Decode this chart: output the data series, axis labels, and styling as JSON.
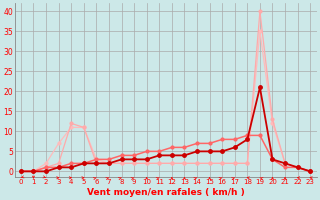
{
  "xlabel": "Vent moyen/en rafales ( km/h )",
  "x_ticks": [
    0,
    1,
    2,
    3,
    4,
    5,
    6,
    7,
    8,
    9,
    10,
    11,
    12,
    13,
    14,
    15,
    16,
    17,
    18,
    19,
    20,
    21,
    22,
    23
  ],
  "ylim": [
    -1.5,
    42
  ],
  "xlim": [
    -0.5,
    23.5
  ],
  "y_ticks": [
    0,
    5,
    10,
    15,
    20,
    25,
    30,
    35,
    40
  ],
  "bg_color": "#cce8e8",
  "grid_color": "#aaaaaa",
  "series": [
    {
      "x": [
        0,
        1,
        2,
        3,
        4,
        5,
        6,
        7,
        8,
        9,
        10,
        11,
        12,
        13,
        14,
        15,
        16,
        17,
        18,
        19,
        20,
        21,
        22,
        23
      ],
      "y": [
        0,
        0,
        2,
        7,
        11,
        11,
        3,
        2,
        2,
        2,
        2,
        2,
        2,
        2,
        2,
        2,
        2,
        2,
        2,
        35,
        12,
        2,
        1,
        0
      ],
      "color": "#ffbbbb",
      "lw": 0.9,
      "marker": "o",
      "ms": 2.0
    },
    {
      "x": [
        0,
        1,
        2,
        3,
        4,
        5,
        6,
        7,
        8,
        9,
        10,
        11,
        12,
        13,
        14,
        15,
        16,
        17,
        18,
        19,
        20,
        21,
        22,
        23
      ],
      "y": [
        0,
        0,
        1,
        2,
        12,
        11,
        2,
        2,
        2,
        2,
        2,
        2,
        2,
        2,
        2,
        2,
        2,
        2,
        2,
        40,
        13,
        2,
        1,
        0
      ],
      "color": "#ffaaaa",
      "lw": 0.9,
      "marker": "o",
      "ms": 2.0
    },
    {
      "x": [
        0,
        1,
        2,
        3,
        4,
        5,
        6,
        7,
        8,
        9,
        10,
        11,
        12,
        13,
        14,
        15,
        16,
        17,
        18,
        19,
        20,
        21,
        22,
        23
      ],
      "y": [
        0,
        0,
        1,
        1,
        2,
        2,
        3,
        3,
        4,
        4,
        5,
        5,
        6,
        6,
        7,
        7,
        8,
        8,
        9,
        9,
        3,
        1,
        1,
        0
      ],
      "color": "#ff6666",
      "lw": 1.1,
      "marker": "o",
      "ms": 2.0
    },
    {
      "x": [
        0,
        1,
        2,
        3,
        4,
        5,
        6,
        7,
        8,
        9,
        10,
        11,
        12,
        13,
        14,
        15,
        16,
        17,
        18,
        19,
        20,
        21,
        22,
        23
      ],
      "y": [
        0,
        0,
        0,
        1,
        1,
        2,
        2,
        2,
        3,
        3,
        3,
        4,
        4,
        4,
        5,
        5,
        5,
        6,
        8,
        21,
        3,
        2,
        1,
        0
      ],
      "color": "#cc0000",
      "lw": 1.3,
      "marker": "o",
      "ms": 2.5
    }
  ],
  "wind_arrows": {
    "x": [
      0,
      1,
      2,
      3,
      4,
      5,
      6,
      7,
      8,
      9,
      10,
      11,
      12,
      13,
      14,
      15,
      16,
      17,
      18,
      19,
      20,
      21,
      22,
      23
    ],
    "angles_deg": [
      315,
      0,
      45,
      90,
      90,
      90,
      135,
      135,
      135,
      135,
      180,
      135,
      180,
      180,
      135,
      180,
      135,
      135,
      270,
      225,
      180,
      180,
      270,
      270
    ]
  }
}
